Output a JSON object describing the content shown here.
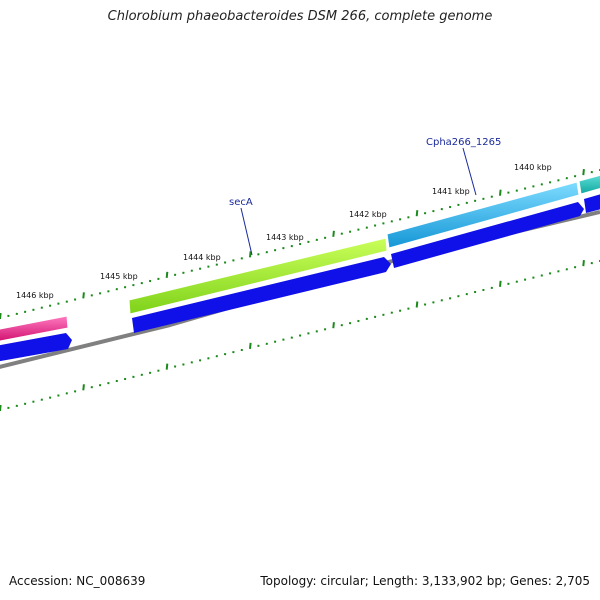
{
  "title": "Chlorobium phaeobacteroides DSM 266, complete genome",
  "footer": {
    "accession": "Accession: NC_008639",
    "summary": "Topology: circular; Length: 3,133,902 bp; Genes: 2,705"
  },
  "ruler": {
    "labels": [
      "1446 kbp",
      "1445 kbp",
      "1444 kbp",
      "1443 kbp",
      "1442 kbp",
      "1441 kbp",
      "1440 kbp"
    ]
  },
  "genes": [
    {
      "name": "",
      "color": "#e8248a"
    },
    {
      "name": "secA",
      "color": "#88dd22"
    },
    {
      "name": "Cpha266_1265",
      "color": "#1aa8e0"
    },
    {
      "name": "",
      "color": "#18c0b4"
    }
  ],
  "colors": {
    "cds": "#1010e8",
    "backbone": "#808080",
    "ticks": "#1a8a1a",
    "label_text": "#1a2a9c"
  }
}
